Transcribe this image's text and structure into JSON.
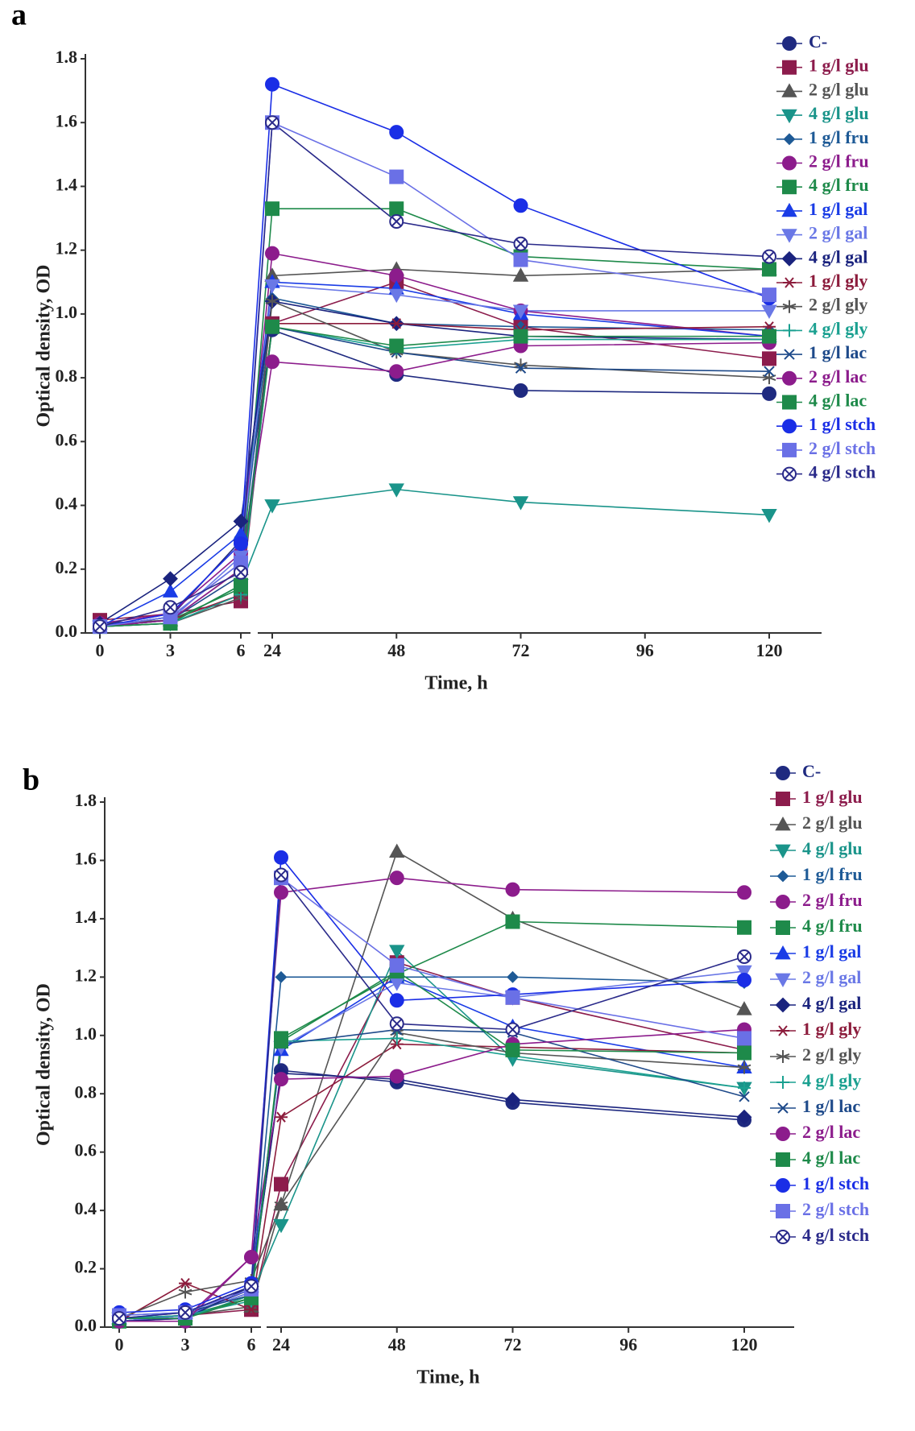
{
  "chart_data": [
    {
      "type": "line",
      "panel": "a",
      "xlabel": "Time, h",
      "ylabel": "Optical density, OD",
      "x": [
        0,
        3,
        6,
        24,
        48,
        72,
        120
      ],
      "xlim": [
        0,
        120
      ],
      "xbreak": [
        6,
        24
      ],
      "xticks": [
        0,
        3,
        6,
        24,
        48,
        72,
        96,
        120
      ],
      "ylim": [
        0,
        1.8
      ],
      "yticks": [
        {
          "value": 0,
          "label": "0.0"
        },
        0.2,
        0.4,
        0.6,
        0.8,
        {
          "value": 1,
          "label": "1.0"
        },
        1.2,
        1.4,
        1.6,
        1.8
      ],
      "series": [
        {
          "name": "C-",
          "color": "#1f2a80",
          "marker": "circle",
          "values": [
            0.02,
            0.05,
            0.29,
            0.95,
            0.81,
            0.76,
            0.75
          ]
        },
        {
          "name": "1 g/l glu",
          "color": "#8c1c4c",
          "marker": "square",
          "values": [
            0.04,
            0.06,
            0.1,
            0.97,
            1.1,
            0.96,
            0.86
          ]
        },
        {
          "name": "2 g/l glu",
          "color": "#555555",
          "marker": "triangle",
          "values": [
            0.03,
            0.04,
            0.2,
            1.12,
            1.14,
            1.12,
            1.14
          ]
        },
        {
          "name": "4 g/l glu",
          "color": "#1a948a",
          "marker": "triangle-down",
          "values": [
            0.02,
            0.03,
            0.15,
            0.4,
            0.45,
            0.41,
            0.37
          ]
        },
        {
          "name": "1 g/l fru",
          "color": "#1e5a96",
          "marker": "diamond-small",
          "values": [
            0.02,
            0.05,
            0.22,
            1.05,
            0.97,
            0.96,
            0.95
          ]
        },
        {
          "name": "2 g/l fru",
          "color": "#8c1c8c",
          "marker": "circle",
          "values": [
            0.03,
            0.06,
            0.25,
            1.19,
            1.12,
            1.01,
            0.93
          ]
        },
        {
          "name": "4 g/l fru",
          "color": "#1e8a4a",
          "marker": "square",
          "values": [
            0.02,
            0.04,
            0.14,
            1.33,
            1.33,
            1.18,
            1.14
          ]
        },
        {
          "name": "1 g/l gal",
          "color": "#1a3ce6",
          "marker": "triangle",
          "values": [
            0.02,
            0.13,
            0.31,
            1.1,
            1.08,
            1.0,
            0.93
          ]
        },
        {
          "name": "2 g/l gal",
          "color": "#6a78e6",
          "marker": "triangle-down",
          "values": [
            0.02,
            0.04,
            0.24,
            1.09,
            1.06,
            1.01,
            1.01
          ]
        },
        {
          "name": "4 g/l gal",
          "color": "#1a237e",
          "marker": "diamond",
          "values": [
            0.03,
            0.17,
            0.35,
            1.04,
            0.97,
            0.93,
            0.92
          ]
        },
        {
          "name": "1 g/l gly",
          "color": "#8c1c3c",
          "marker": "asterisk",
          "values": [
            0.02,
            0.04,
            0.12,
            0.97,
            0.97,
            0.95,
            0.96
          ]
        },
        {
          "name": "2 g/l gly",
          "color": "#555555",
          "marker": "star",
          "values": [
            0.02,
            0.03,
            0.11,
            1.04,
            0.88,
            0.84,
            0.8
          ]
        },
        {
          "name": "4 g/l gly",
          "color": "#1aa090",
          "marker": "plus",
          "values": [
            0.02,
            0.03,
            0.12,
            0.96,
            0.89,
            0.92,
            0.92
          ]
        },
        {
          "name": "1 g/l lac",
          "color": "#1e4a8a",
          "marker": "cross",
          "values": [
            0.02,
            0.04,
            0.18,
            0.96,
            0.88,
            0.83,
            0.82
          ]
        },
        {
          "name": "2 g/l lac",
          "color": "#8c1c8c",
          "marker": "circle",
          "values": [
            0.02,
            0.04,
            0.2,
            0.85,
            0.82,
            0.9,
            0.91
          ]
        },
        {
          "name": "4 g/l lac",
          "color": "#1e8a4a",
          "marker": "square",
          "values": [
            0.02,
            0.03,
            0.15,
            0.96,
            0.9,
            0.93,
            0.93
          ]
        },
        {
          "name": "1 g/l stch",
          "color": "#1a2ee6",
          "marker": "circle",
          "values": [
            0.02,
            0.06,
            0.28,
            1.72,
            1.57,
            1.34,
            1.05
          ]
        },
        {
          "name": "2 g/l stch",
          "color": "#6a70e6",
          "marker": "square",
          "values": [
            0.02,
            0.05,
            0.22,
            1.6,
            1.43,
            1.17,
            1.06
          ]
        },
        {
          "name": "4 g/l stch",
          "color": "#2a2a8a",
          "marker": "circle-cross",
          "values": [
            0.02,
            0.08,
            0.19,
            1.6,
            1.29,
            1.22,
            1.18
          ]
        }
      ]
    },
    {
      "type": "line",
      "panel": "b",
      "xlabel": "Time, h",
      "ylabel": "Optical density, OD",
      "x": [
        0,
        3,
        6,
        24,
        48,
        72,
        120
      ],
      "xlim": [
        0,
        120
      ],
      "xbreak": [
        6,
        24
      ],
      "xticks": [
        0,
        3,
        6,
        24,
        48,
        72,
        96,
        120
      ],
      "ylim": [
        0,
        1.8
      ],
      "yticks": [
        {
          "value": 0,
          "label": "0.0"
        },
        0.2,
        0.4,
        0.6,
        0.8,
        {
          "value": 1,
          "label": "1.0"
        },
        1.2,
        1.4,
        1.6,
        1.8
      ],
      "series": [
        {
          "name": "C-",
          "color": "#1f2a80",
          "marker": "circle",
          "values": [
            0.02,
            0.04,
            0.13,
            0.88,
            0.84,
            0.77,
            0.71
          ]
        },
        {
          "name": "1 g/l glu",
          "color": "#8c1c4c",
          "marker": "square",
          "values": [
            0.03,
            0.04,
            0.06,
            0.49,
            1.25,
            1.13,
            0.95
          ]
        },
        {
          "name": "2 g/l glu",
          "color": "#555555",
          "marker": "triangle",
          "values": [
            0.03,
            0.04,
            0.07,
            0.42,
            1.63,
            1.4,
            1.09
          ]
        },
        {
          "name": "4 g/l glu",
          "color": "#1a948a",
          "marker": "triangle-down",
          "values": [
            0.03,
            0.03,
            0.11,
            0.35,
            1.29,
            0.92,
            0.82
          ]
        },
        {
          "name": "1 g/l fru",
          "color": "#1e5a96",
          "marker": "diamond-small",
          "values": [
            0.02,
            0.04,
            0.12,
            1.2,
            1.2,
            1.2,
            1.18
          ]
        },
        {
          "name": "2 g/l fru",
          "color": "#8c1c8c",
          "marker": "circle",
          "values": [
            0.02,
            0.03,
            0.24,
            1.49,
            1.54,
            1.5,
            1.49
          ]
        },
        {
          "name": "4 g/l fru",
          "color": "#1e8a4a",
          "marker": "square",
          "values": [
            0.02,
            0.04,
            0.1,
            0.99,
            1.21,
            1.39,
            1.37
          ]
        },
        {
          "name": "1 g/l gal",
          "color": "#1a3ce6",
          "marker": "triangle",
          "values": [
            0.03,
            0.05,
            0.14,
            0.95,
            1.2,
            1.03,
            0.89
          ]
        },
        {
          "name": "2 g/l gal",
          "color": "#6a78e6",
          "marker": "triangle-down",
          "values": [
            0.02,
            0.04,
            0.12,
            0.96,
            1.18,
            1.13,
            1.22
          ]
        },
        {
          "name": "4 g/l gal",
          "color": "#1a237e",
          "marker": "diamond",
          "values": [
            0.02,
            0.03,
            0.14,
            0.87,
            0.85,
            0.78,
            0.72
          ]
        },
        {
          "name": "1 g/l gly",
          "color": "#8c1c3c",
          "marker": "asterisk",
          "values": [
            0.02,
            0.15,
            0.06,
            0.72,
            0.97,
            0.96,
            0.94
          ]
        },
        {
          "name": "2 g/l gly",
          "color": "#555555",
          "marker": "star",
          "values": [
            0.03,
            0.12,
            0.16,
            0.42,
            1.01,
            0.94,
            0.89
          ]
        },
        {
          "name": "4 g/l gly",
          "color": "#1aa090",
          "marker": "plus",
          "values": [
            0.03,
            0.04,
            0.09,
            0.98,
            0.99,
            0.93,
            0.82
          ]
        },
        {
          "name": "1 g/l lac",
          "color": "#1e4a8a",
          "marker": "cross",
          "values": [
            0.04,
            0.05,
            0.11,
            0.97,
            1.02,
            1.01,
            0.79
          ]
        },
        {
          "name": "2 g/l lac",
          "color": "#8c1c8c",
          "marker": "circle",
          "values": [
            0.02,
            0.02,
            0.24,
            0.85,
            0.86,
            0.97,
            1.02
          ]
        },
        {
          "name": "4 g/l lac",
          "color": "#1e8a4a",
          "marker": "square",
          "values": [
            0.03,
            0.03,
            0.1,
            0.98,
            1.22,
            0.95,
            0.94
          ]
        },
        {
          "name": "1 g/l stch",
          "color": "#1a2ee6",
          "marker": "circle",
          "values": [
            0.05,
            0.06,
            0.15,
            1.61,
            1.12,
            1.14,
            1.19
          ]
        },
        {
          "name": "2 g/l stch",
          "color": "#6a70e6",
          "marker": "square",
          "values": [
            0.04,
            0.05,
            0.13,
            1.54,
            1.24,
            1.13,
            0.99
          ]
        },
        {
          "name": "4 g/l stch",
          "color": "#2a2a8a",
          "marker": "circle-cross",
          "values": [
            0.03,
            0.05,
            0.14,
            1.55,
            1.04,
            1.02,
            1.27
          ]
        }
      ]
    }
  ]
}
